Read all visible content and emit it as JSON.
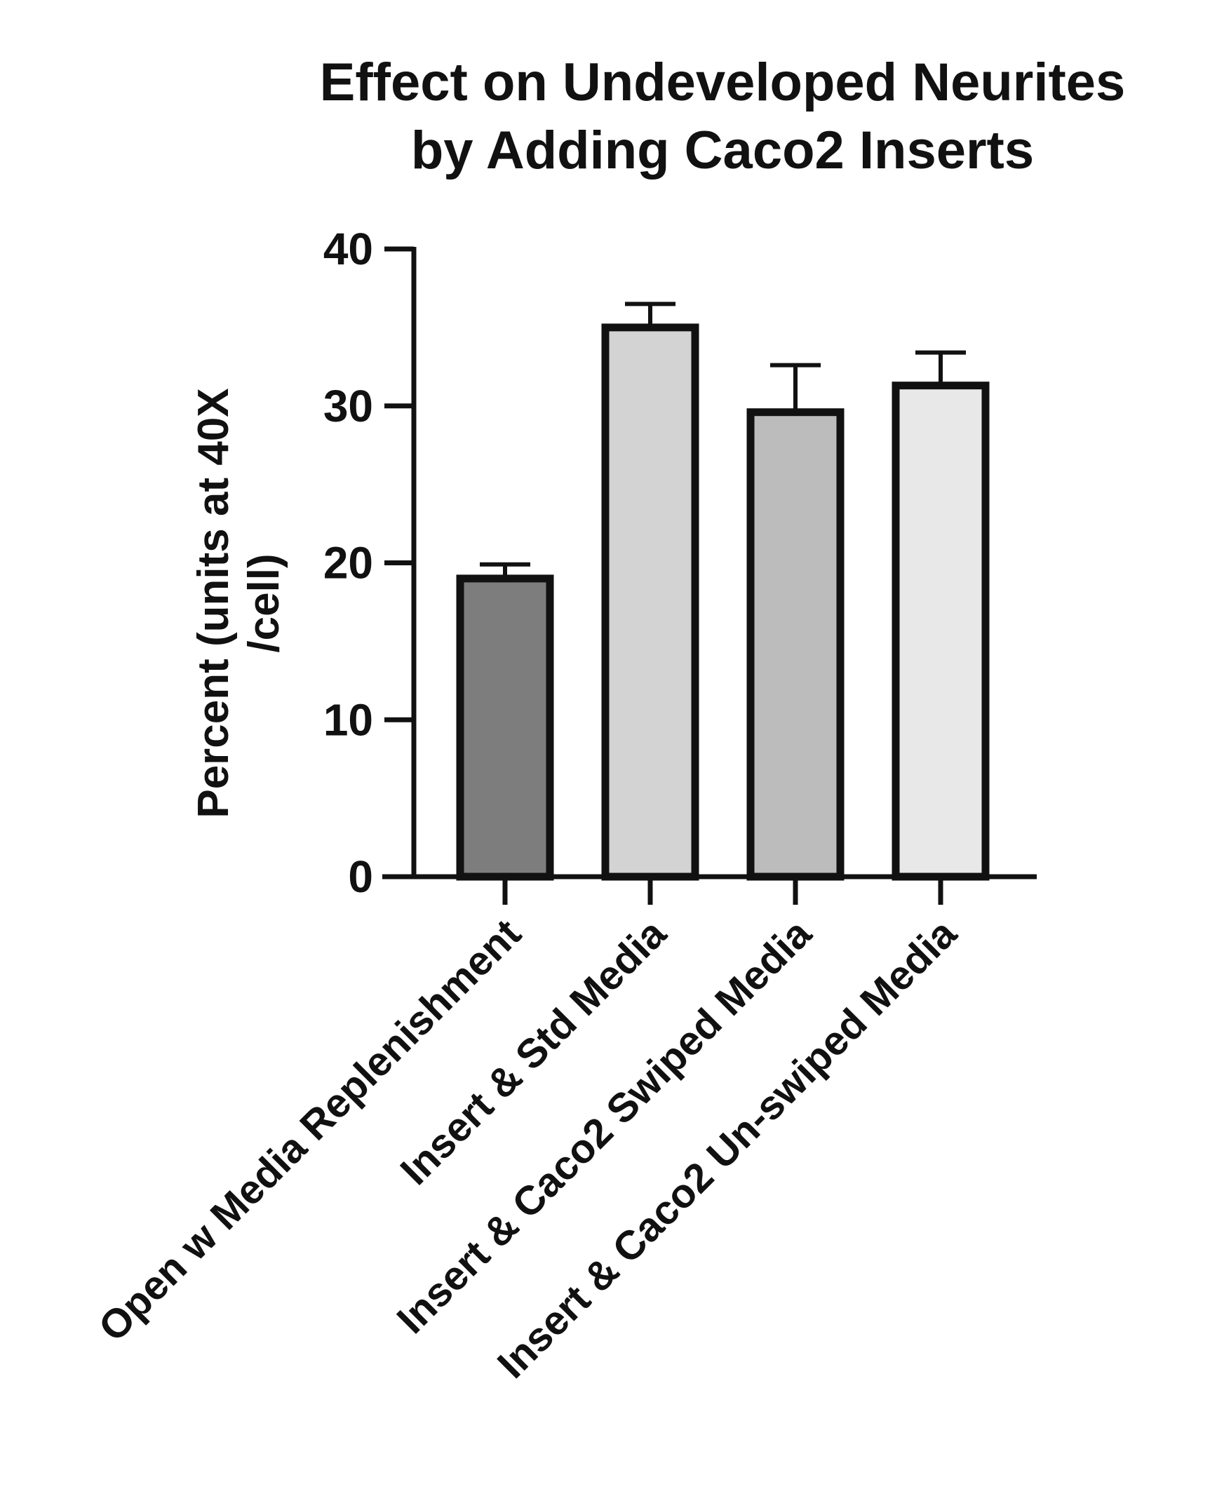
{
  "chart_data": {
    "type": "bar",
    "title_lines": [
      "Effect on Undeveloped Neurites",
      "by Adding Caco2 Inserts"
    ],
    "ylabel_lines": [
      "Percent (units at 40X",
      "/cell)"
    ],
    "xlabel": "",
    "categories": [
      "Open w Media Replenishment",
      "Insert & Std Media",
      "Insert & Caco2 Swiped Media",
      "Insert & Caco2 Un-swiped Media"
    ],
    "values": [
      19,
      35,
      29.6,
      31.3
    ],
    "errors": [
      0.9,
      1.5,
      3.0,
      2.1
    ],
    "bar_colors": [
      "#7d7d7d",
      "#d3d3d3",
      "#bcbcbc",
      "#e8e8e8"
    ],
    "ylim": [
      0,
      40
    ],
    "yticks": [
      0,
      10,
      20,
      30,
      40
    ],
    "grid": false
  }
}
